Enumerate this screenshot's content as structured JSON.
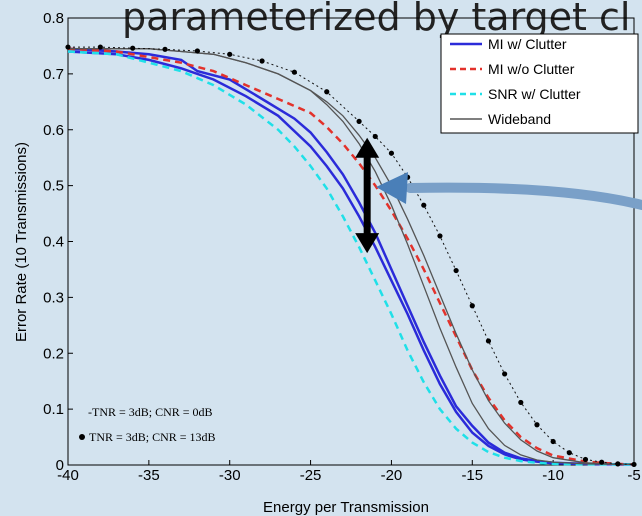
{
  "header": {
    "title_fragment": "parameterized by target cl"
  },
  "chart_data": {
    "type": "line",
    "xlabel": "Energy per Transmission",
    "ylabel": "Error Rate (10 Transmissions)",
    "xlim": [
      -40,
      -5
    ],
    "ylim": [
      0,
      0.8
    ],
    "xticks": [
      -40,
      -35,
      -30,
      -25,
      -20,
      -15,
      -10,
      -5
    ],
    "yticks": [
      0,
      0.1,
      0.2,
      0.3,
      0.4,
      0.5,
      0.6,
      0.7,
      0.8
    ],
    "xtick_labels": [
      "-40",
      "-35",
      "-30",
      "-25",
      "-20",
      "-15",
      "-10",
      "-5"
    ],
    "ytick_labels": [
      "0",
      "0.1",
      "0.2",
      "0.3",
      "0.4",
      "0.5",
      "0.6",
      "0.7",
      "0.8"
    ],
    "grid": false,
    "legend_position": "top-right",
    "series": [
      {
        "name": "MI w/ Clutter",
        "color": "#2b2bd9",
        "style": "solid",
        "x": [
          -40,
          -37,
          -35,
          -33,
          -32,
          -30,
          -28,
          -26,
          -25,
          -24,
          -23,
          -22,
          -21,
          -20,
          -19,
          -18,
          -17,
          -16,
          -15,
          -14,
          -13,
          -12,
          -11,
          -10,
          -8,
          -6,
          -5
        ],
        "y": [
          0.745,
          0.74,
          0.735,
          0.725,
          0.705,
          0.69,
          0.655,
          0.62,
          0.595,
          0.56,
          0.52,
          0.47,
          0.415,
          0.35,
          0.285,
          0.22,
          0.16,
          0.105,
          0.07,
          0.04,
          0.022,
          0.012,
          0.007,
          0.004,
          0.002,
          0.001,
          0.001
        ]
      },
      {
        "name": "MI w/ Clutter",
        "color": "#2b2bd9",
        "style": "solid",
        "x": [
          -40,
          -37,
          -35,
          -33,
          -31,
          -29,
          -27,
          -25,
          -24,
          -23,
          -22,
          -21,
          -20,
          -19,
          -18,
          -17,
          -16,
          -15,
          -14,
          -13,
          -12,
          -11,
          -10,
          -8,
          -6,
          -5
        ],
        "y": [
          0.74,
          0.735,
          0.725,
          0.71,
          0.69,
          0.66,
          0.625,
          0.57,
          0.535,
          0.495,
          0.445,
          0.39,
          0.33,
          0.27,
          0.205,
          0.145,
          0.095,
          0.058,
          0.034,
          0.019,
          0.01,
          0.006,
          0.003,
          0.002,
          0.001,
          0.001
        ]
      },
      {
        "name": "MI w/o Clutter",
        "color": "#e3322b",
        "style": "dashed",
        "x": [
          -40,
          -37,
          -35,
          -33,
          -31,
          -29,
          -27,
          -25,
          -24,
          -23,
          -22,
          -21,
          -20,
          -19,
          -18,
          -17,
          -16,
          -15,
          -14,
          -13,
          -12,
          -11,
          -10,
          -8,
          -6,
          -5
        ],
        "y": [
          0.745,
          0.74,
          0.73,
          0.72,
          0.705,
          0.68,
          0.655,
          0.63,
          0.605,
          0.575,
          0.54,
          0.5,
          0.455,
          0.405,
          0.35,
          0.29,
          0.23,
          0.17,
          0.12,
          0.08,
          0.05,
          0.03,
          0.017,
          0.006,
          0.002,
          0.001
        ]
      },
      {
        "name": "SNR w/ Clutter",
        "color": "#1fe0e8",
        "style": "dashed",
        "x": [
          -40,
          -37,
          -35,
          -33,
          -31,
          -29,
          -27,
          -26,
          -25,
          -24,
          -23,
          -22,
          -21,
          -20,
          -19,
          -18,
          -17,
          -16,
          -15,
          -14,
          -13,
          -12,
          -11,
          -10,
          -8,
          -6,
          -5
        ],
        "y": [
          0.74,
          0.735,
          0.72,
          0.705,
          0.68,
          0.645,
          0.6,
          0.57,
          0.535,
          0.495,
          0.445,
          0.39,
          0.33,
          0.27,
          0.205,
          0.148,
          0.1,
          0.065,
          0.04,
          0.023,
          0.013,
          0.007,
          0.004,
          0.002,
          0.001,
          0.001,
          0.001
        ]
      },
      {
        "name": "Wideband",
        "color": "#555555",
        "style": "solid",
        "x": [
          -40,
          -37,
          -35,
          -33,
          -31,
          -29,
          -27,
          -25,
          -24,
          -23,
          -22,
          -21,
          -20,
          -19,
          -18,
          -17,
          -16,
          -15,
          -14,
          -13,
          -12,
          -11,
          -10,
          -8,
          -6,
          -5
        ],
        "y": [
          0.745,
          0.745,
          0.745,
          0.74,
          0.735,
          0.72,
          0.7,
          0.67,
          0.645,
          0.615,
          0.575,
          0.525,
          0.465,
          0.395,
          0.32,
          0.245,
          0.175,
          0.11,
          0.065,
          0.035,
          0.018,
          0.009,
          0.005,
          0.002,
          0.001,
          0.001
        ]
      },
      {
        "name": "Wideband",
        "color": "#555555",
        "style": "solid",
        "x": [
          -40,
          -37,
          -35,
          -33,
          -31,
          -29,
          -27,
          -25,
          -24,
          -23,
          -22,
          -21,
          -20,
          -19,
          -18,
          -17,
          -16,
          -15,
          -14,
          -13,
          -12,
          -11,
          -10,
          -8,
          -6,
          -5
        ],
        "y": [
          0.745,
          0.745,
          0.745,
          0.74,
          0.735,
          0.72,
          0.7,
          0.67,
          0.65,
          0.625,
          0.59,
          0.55,
          0.5,
          0.44,
          0.375,
          0.305,
          0.235,
          0.17,
          0.115,
          0.075,
          0.045,
          0.025,
          0.013,
          0.004,
          0.001,
          0.001
        ]
      },
      {
        "name": "TNR = 3dB; CNR = 13dB",
        "color": "#111111",
        "style": "dotted-markers",
        "x": [
          -40,
          -38,
          -36,
          -34,
          -32,
          -30,
          -28,
          -26,
          -24,
          -22,
          -21,
          -20,
          -19,
          -18,
          -17,
          -16,
          -15,
          -14,
          -13,
          -12,
          -11,
          -10,
          -9,
          -8,
          -7,
          -6,
          -5
        ],
        "y": [
          0.748,
          0.748,
          0.746,
          0.744,
          0.741,
          0.735,
          0.723,
          0.703,
          0.668,
          0.615,
          0.588,
          0.558,
          0.515,
          0.465,
          0.41,
          0.348,
          0.285,
          0.222,
          0.163,
          0.112,
          0.072,
          0.042,
          0.022,
          0.01,
          0.005,
          0.002,
          0.001
        ]
      }
    ],
    "legend": [
      "MI w/ Clutter",
      "MI w/o Clutter",
      "SNR w/ Clutter",
      "Wideband"
    ],
    "annotations": [
      {
        "text": "-TNR = 3dB; CNR = 0dB"
      },
      {
        "text": "TNR = 3dB; CNR = 13dB"
      }
    ],
    "arrow_marker": {
      "x": -21.5,
      "y_top": 0.575,
      "y_bottom": 0.39
    }
  }
}
